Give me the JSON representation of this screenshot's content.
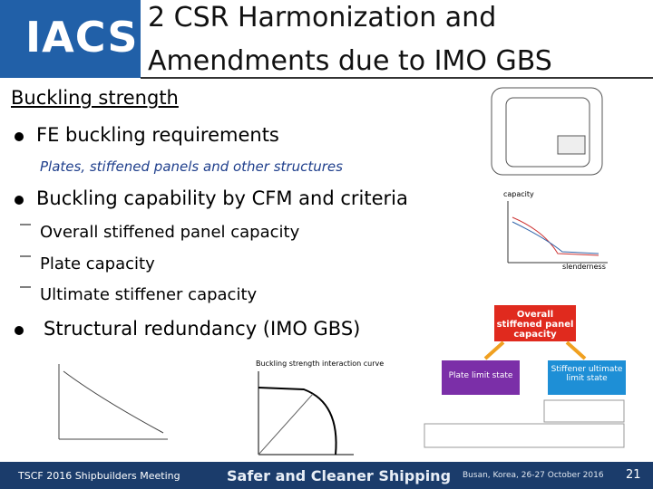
{
  "header": {
    "logo": "IACS",
    "title_lines": [
      "2 CSR Harmonization and",
      "Amendments due to IMO GBS"
    ]
  },
  "body": {
    "heading": "Buckling strength",
    "bullets": [
      {
        "text": "FE buckling requirements",
        "note": "Plates, stiffened panels and other structures"
      },
      {
        "text": "Buckling capability by CFM and criteria",
        "items": [
          "Overall stiffened panel capacity",
          "Plate capacity",
          "Ultimate stiffener capacity"
        ]
      },
      {
        "text": "Structural redundancy (IMO GBS)"
      }
    ]
  },
  "figures": {
    "capacity_graph": {
      "y_label": "capacity",
      "x_label": "slenderness"
    },
    "interaction_curve": {
      "title": "Buckling strength interaction curve"
    },
    "flow": {
      "top": "Overall stiffened panel capacity",
      "left": "Plate limit state",
      "right": "Stiffener ultimate limit state"
    }
  },
  "footer": {
    "left": "TSCF 2016 Shipbuilders Meeting",
    "center": "Safer and Cleaner Shipping",
    "right": "Busan, Korea, 26-27 October 2016",
    "page": "21"
  }
}
